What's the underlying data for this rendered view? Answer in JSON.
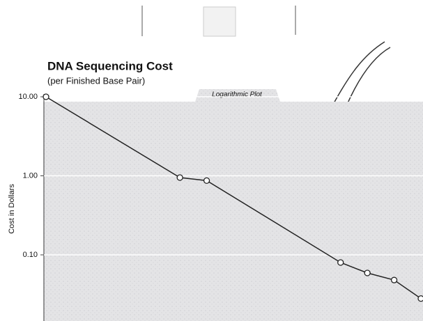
{
  "chart_data": {
    "type": "line",
    "title": "DNA Sequencing Cost",
    "subtitle": "(per Finished Base Pair)",
    "annotation": "Logarithmic Plot",
    "y_label": "Cost in Dollars",
    "x": [
      0,
      5,
      6,
      11,
      12,
      13,
      14
    ],
    "xlim": [
      0,
      14
    ],
    "series": [
      {
        "color": "#222",
        "values": [
          10,
          0.95,
          0.87,
          0.08,
          0.059,
          0.048,
          0.028
        ]
      }
    ],
    "ylim": [
      0.015,
      12
    ],
    "log_y": true,
    "yticks": [
      {
        "value": 10,
        "label": "10.00"
      },
      {
        "value": 1,
        "label": "1.00"
      },
      {
        "value": 0.1,
        "label": "0.10"
      }
    ]
  }
}
